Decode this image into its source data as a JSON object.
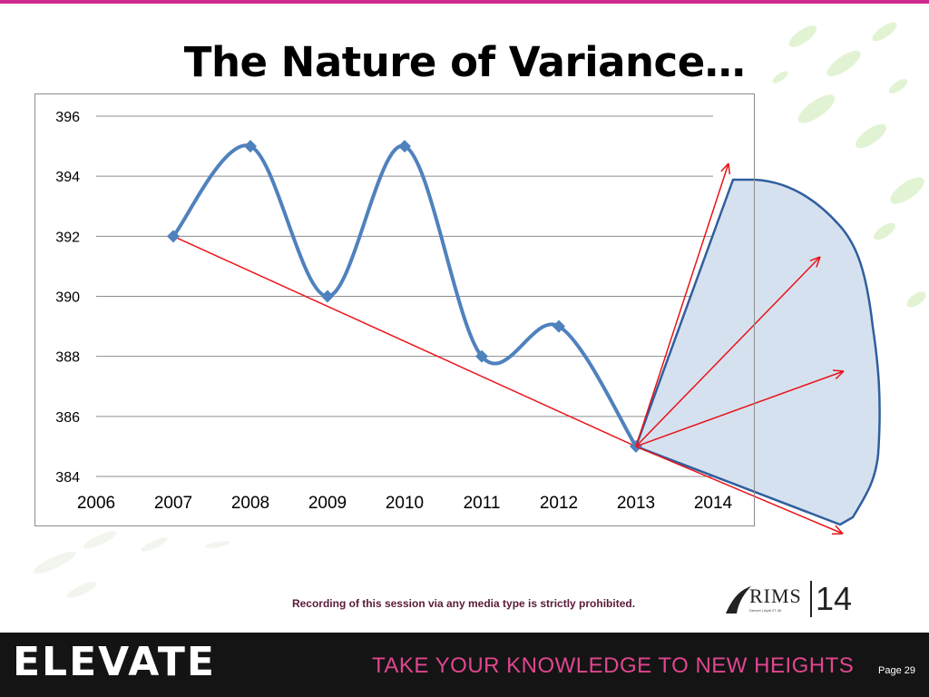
{
  "slide": {
    "title": "The Nature of Variance…",
    "footer_note": "Recording of this session via any media type is strictly prohibited.",
    "brand": "ELEVATE",
    "tagline": "TAKE YOUR KNOWLEDGE TO NEW HEIGHTS",
    "page_label": "Page 29",
    "logo_text": "RIMS",
    "logo_subtext": "Denver | April 27-30",
    "logo_year": "14"
  },
  "colors": {
    "accent": "#cc2a8c",
    "series": "#4f81bd",
    "arrow": "#e8141a",
    "cone_fill": "#d6e1ef",
    "cone_stroke": "#2f5f9e",
    "bottom_bar": "#141414",
    "tagline": "#e0468f"
  },
  "chart_data": {
    "type": "line",
    "title": "",
    "xlabel": "",
    "ylabel": "",
    "xlim": [
      2006,
      2014
    ],
    "ylim": [
      384,
      396
    ],
    "x_ticks": [
      "2006",
      "2007",
      "2008",
      "2009",
      "2010",
      "2011",
      "2012",
      "2013",
      "2014"
    ],
    "y_ticks": [
      "384",
      "386",
      "388",
      "390",
      "392",
      "394",
      "396"
    ],
    "grid": true,
    "smoothed": true,
    "series": [
      {
        "x": [
          2007,
          2008,
          2009,
          2010,
          2011,
          2012,
          2013
        ],
        "y": [
          392,
          395,
          390,
          395,
          388,
          389,
          385
        ]
      }
    ],
    "annotations": {
      "trend_line": {
        "from": [
          2007,
          392
        ],
        "to": [
          2013,
          385
        ]
      },
      "forecast_arrows_from": [
        2013,
        385
      ],
      "forecast_cone": true
    }
  }
}
